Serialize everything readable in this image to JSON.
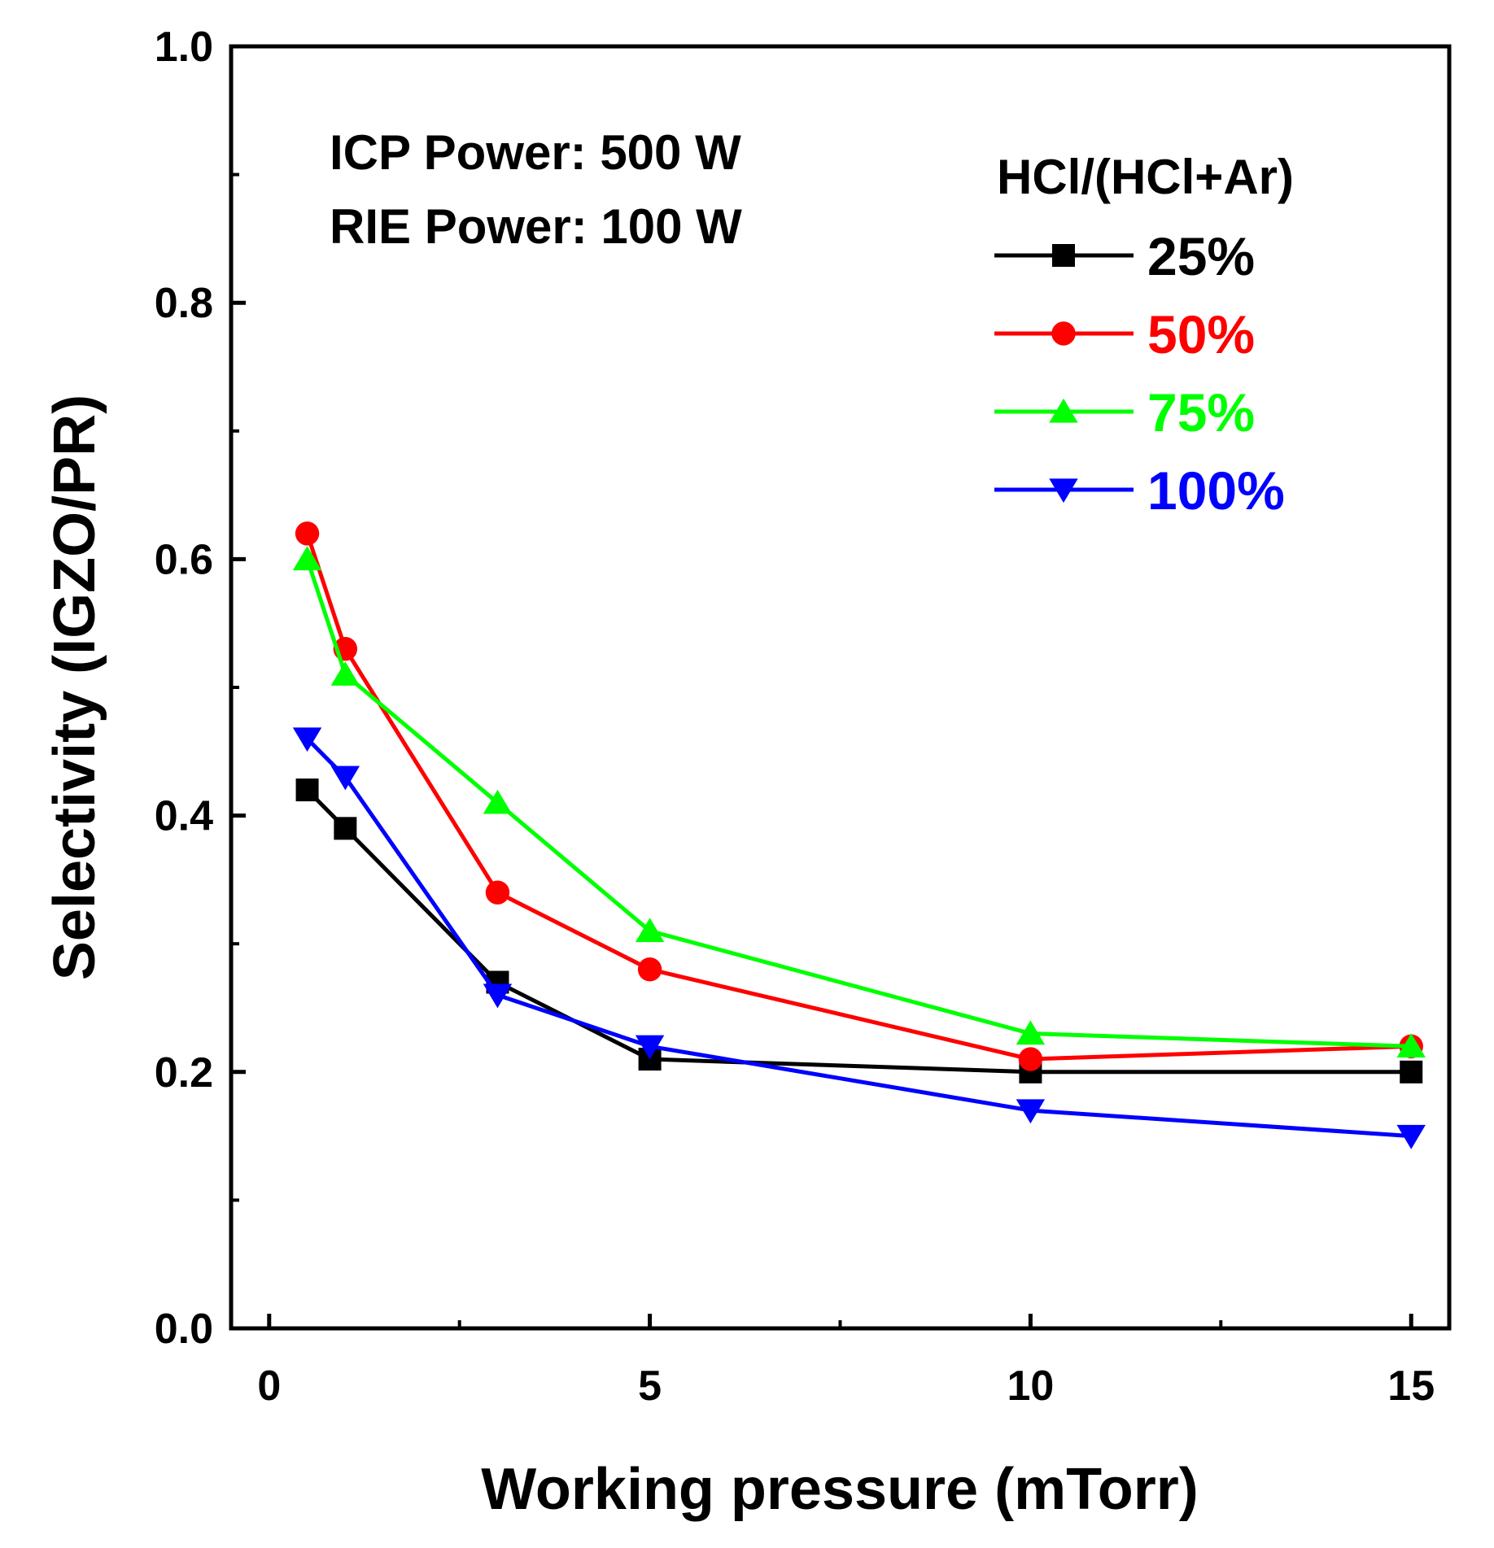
{
  "chart_data": {
    "type": "line",
    "title": "",
    "xlabel": "Working pressure (mTorr)",
    "ylabel": "Selectivity (IGZO/PR)",
    "xlim": [
      -0.5,
      15.5
    ],
    "ylim": [
      0.0,
      1.0
    ],
    "xticks": [
      0,
      5,
      10,
      15
    ],
    "xtick_labels": [
      "0",
      "5",
      "10",
      "15"
    ],
    "x_minor_ticks": [
      2.5,
      7.5,
      12.5
    ],
    "yticks": [
      0.0,
      0.2,
      0.4,
      0.6,
      0.8,
      1.0
    ],
    "ytick_labels": [
      "0.0",
      "0.2",
      "0.4",
      "0.6",
      "0.8",
      "1.0"
    ],
    "y_minor_ticks": [
      0.1,
      0.3,
      0.5,
      0.7,
      0.9
    ],
    "grid": false,
    "legend_position": "top-right",
    "legend_title": "HCl/(HCl+Ar)",
    "annotations": [
      "ICP Power: 500 W",
      "RIE Power: 100 W"
    ],
    "x": [
      0.5,
      1,
      3,
      5,
      10,
      15
    ],
    "series": [
      {
        "name": "25%",
        "color": "#000000",
        "marker": "square",
        "values": [
          0.42,
          0.39,
          0.27,
          0.21,
          0.2,
          0.2
        ]
      },
      {
        "name": "50%",
        "color": "#ff0000",
        "marker": "circle",
        "values": [
          0.62,
          0.53,
          0.34,
          0.28,
          0.21,
          0.22
        ]
      },
      {
        "name": "75%",
        "color": "#00ff00",
        "marker": "triangle-up",
        "values": [
          0.6,
          0.51,
          0.41,
          0.31,
          0.23,
          0.22
        ]
      },
      {
        "name": "100%",
        "color": "#0000ff",
        "marker": "triangle-down",
        "values": [
          0.46,
          0.43,
          0.26,
          0.22,
          0.17,
          0.15
        ]
      }
    ]
  }
}
